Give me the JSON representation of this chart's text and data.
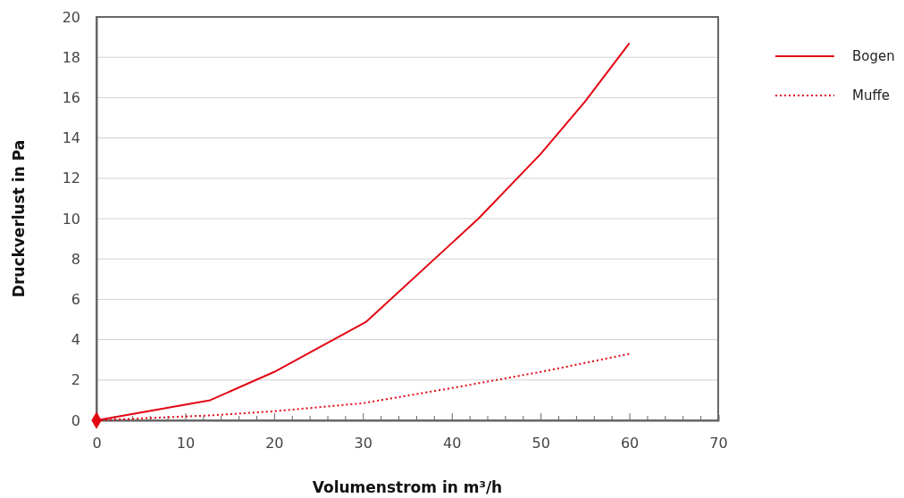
{
  "chart_data": {
    "type": "line",
    "xlabel": "Volumenstrom in m³/h",
    "ylabel": "Druckverlust in Pa",
    "xlim": [
      0,
      70
    ],
    "ylim": [
      0,
      20
    ],
    "xticks": [
      0,
      {
        "value": 2,
        "label": null
      },
      {
        "value": 4,
        "label": null
      },
      {
        "value": 6,
        "label": null
      },
      {
        "value": 8,
        "label": null
      },
      10,
      {
        "value": 12,
        "label": null
      },
      {
        "value": 14,
        "label": null
      },
      {
        "value": 16,
        "label": null
      },
      {
        "value": 18,
        "label": null
      },
      20,
      {
        "value": 22,
        "label": null
      },
      {
        "value": 24,
        "label": null
      },
      {
        "value": 26,
        "label": null
      },
      {
        "value": 28,
        "label": null
      },
      30,
      {
        "value": 32,
        "label": null
      },
      {
        "value": 34,
        "label": null
      },
      {
        "value": 36,
        "label": null
      },
      {
        "value": 38,
        "label": null
      },
      40,
      {
        "value": 42,
        "label": null
      },
      {
        "value": 44,
        "label": null
      },
      {
        "value": 46,
        "label": null
      },
      {
        "value": 48,
        "label": null
      },
      50,
      {
        "value": 52,
        "label": null
      },
      {
        "value": 54,
        "label": null
      },
      {
        "value": 56,
        "label": null
      },
      {
        "value": 58,
        "label": null
      },
      60,
      {
        "value": 62,
        "label": null
      },
      {
        "value": 64,
        "label": null
      },
      {
        "value": 66,
        "label": null
      },
      {
        "value": 68,
        "label": null
      },
      70
    ],
    "yticks": [
      0,
      2,
      4,
      6,
      8,
      10,
      12,
      14,
      16,
      18,
      20
    ],
    "grid": "y",
    "legend": "top right",
    "series": [
      {
        "name": "Bogen",
        "color": "#e30613",
        "line_style": "solid",
        "marker": "none",
        "x": [
          0,
          12.8,
          20,
          30.4,
          43,
          50,
          55,
          60
        ],
        "values": [
          0,
          1,
          2.4,
          4.9,
          10,
          13.2,
          15.8,
          18.7
        ]
      },
      {
        "name": "Muffe",
        "color": "#e30613",
        "line_style": "dotted",
        "marker": "none",
        "x": [
          0,
          13,
          20,
          30,
          40,
          50,
          60
        ],
        "values": [
          0,
          0.25,
          0.45,
          0.85,
          1.6,
          2.4,
          3.3
        ]
      }
    ]
  }
}
